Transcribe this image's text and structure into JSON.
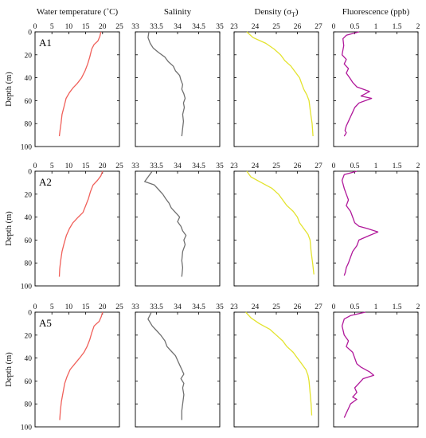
{
  "chart_data": {
    "type": "line",
    "panel_titles": [
      "Water temperature (˚C)",
      "Salinity",
      "Density (σ",
      "Fluorescence (ppb)"
    ],
    "density_title_subscript": "T",
    "density_title_suffix": ")",
    "ylabel": "Depth (m)",
    "ylim": [
      100,
      0
    ],
    "yticks": [
      "0",
      "20",
      "40",
      "60",
      "80",
      "100"
    ],
    "columns": [
      {
        "key": "temp",
        "xlim": [
          0,
          25
        ],
        "xticks": [
          "0",
          "5",
          "10",
          "15",
          "20",
          "25"
        ],
        "color": "#f0605a"
      },
      {
        "key": "sal",
        "xlim": [
          33,
          35
        ],
        "xticks": [
          "33",
          "33.5",
          "34",
          "34.5",
          "35"
        ],
        "color": "#707070"
      },
      {
        "key": "dens",
        "xlim": [
          23,
          27
        ],
        "xticks": [
          "23",
          "24",
          "25",
          "26",
          "27"
        ],
        "color": "#e3e32e"
      },
      {
        "key": "fluor",
        "xlim": [
          0,
          2
        ],
        "xticks": [
          "0",
          "0.5",
          "1",
          "1.5",
          "2"
        ],
        "color": "#b0189a"
      }
    ],
    "stations": [
      {
        "name": "A1",
        "temp": [
          [
            19.5,
            0
          ],
          [
            19.2,
            4
          ],
          [
            18.6,
            8
          ],
          [
            17.5,
            11
          ],
          [
            16.8,
            15
          ],
          [
            16.2,
            22
          ],
          [
            15.6,
            28
          ],
          [
            14.8,
            34
          ],
          [
            13.8,
            40
          ],
          [
            12.5,
            45
          ],
          [
            11.2,
            49
          ],
          [
            10.2,
            53
          ],
          [
            9.2,
            58
          ],
          [
            8.6,
            65
          ],
          [
            8.0,
            72
          ],
          [
            7.7,
            80
          ],
          [
            7.4,
            86
          ],
          [
            7.2,
            91
          ]
        ],
        "sal": [
          [
            33.32,
            0
          ],
          [
            33.3,
            5
          ],
          [
            33.35,
            10
          ],
          [
            33.42,
            14
          ],
          [
            33.55,
            18
          ],
          [
            33.7,
            22
          ],
          [
            33.78,
            26
          ],
          [
            33.9,
            30
          ],
          [
            33.95,
            34
          ],
          [
            34.05,
            38
          ],
          [
            34.08,
            42
          ],
          [
            34.12,
            46
          ],
          [
            34.1,
            50
          ],
          [
            34.15,
            54
          ],
          [
            34.18,
            58
          ],
          [
            34.14,
            62
          ],
          [
            34.16,
            66
          ],
          [
            34.12,
            72
          ],
          [
            34.14,
            78
          ],
          [
            34.12,
            84
          ],
          [
            34.1,
            91
          ]
        ],
        "dens": [
          [
            23.6,
            0
          ],
          [
            23.9,
            5
          ],
          [
            24.5,
            10
          ],
          [
            24.9,
            15
          ],
          [
            25.2,
            20
          ],
          [
            25.4,
            25
          ],
          [
            25.7,
            30
          ],
          [
            25.9,
            35
          ],
          [
            26.1,
            40
          ],
          [
            26.2,
            45
          ],
          [
            26.3,
            50
          ],
          [
            26.45,
            55
          ],
          [
            26.55,
            60
          ],
          [
            26.62,
            70
          ],
          [
            26.7,
            80
          ],
          [
            26.74,
            91
          ]
        ],
        "fluor": [
          [
            0.6,
            0
          ],
          [
            0.3,
            3
          ],
          [
            0.22,
            6
          ],
          [
            0.24,
            12
          ],
          [
            0.2,
            20
          ],
          [
            0.3,
            24
          ],
          [
            0.25,
            28
          ],
          [
            0.35,
            32
          ],
          [
            0.3,
            36
          ],
          [
            0.38,
            40
          ],
          [
            0.45,
            44
          ],
          [
            0.55,
            48
          ],
          [
            0.85,
            52
          ],
          [
            0.65,
            56
          ],
          [
            0.9,
            58
          ],
          [
            0.6,
            62
          ],
          [
            0.5,
            66
          ],
          [
            0.45,
            70
          ],
          [
            0.4,
            74
          ],
          [
            0.35,
            78
          ],
          [
            0.3,
            82
          ],
          [
            0.27,
            86
          ],
          [
            0.3,
            88
          ],
          [
            0.25,
            91
          ]
        ]
      },
      {
        "name": "A2",
        "temp": [
          [
            20,
            0
          ],
          [
            19.5,
            4
          ],
          [
            18.5,
            8
          ],
          [
            17.2,
            12
          ],
          [
            16.4,
            18
          ],
          [
            15.8,
            24
          ],
          [
            15.0,
            30
          ],
          [
            14.2,
            36
          ],
          [
            12.8,
            40
          ],
          [
            11.2,
            45
          ],
          [
            10.2,
            50
          ],
          [
            9.3,
            56
          ],
          [
            8.6,
            63
          ],
          [
            8.0,
            70
          ],
          [
            7.6,
            78
          ],
          [
            7.3,
            85
          ],
          [
            7.2,
            92
          ]
        ],
        "sal": [
          [
            33.4,
            0
          ],
          [
            33.3,
            5
          ],
          [
            33.22,
            9
          ],
          [
            33.45,
            12
          ],
          [
            33.55,
            16
          ],
          [
            33.65,
            20
          ],
          [
            33.72,
            24
          ],
          [
            33.8,
            28
          ],
          [
            33.85,
            32
          ],
          [
            33.95,
            36
          ],
          [
            34.05,
            40
          ],
          [
            34.0,
            44
          ],
          [
            34.08,
            48
          ],
          [
            34.12,
            52
          ],
          [
            34.2,
            56
          ],
          [
            34.15,
            60
          ],
          [
            34.18,
            64
          ],
          [
            34.12,
            70
          ],
          [
            34.1,
            78
          ],
          [
            34.12,
            84
          ],
          [
            34.1,
            92
          ]
        ],
        "dens": [
          [
            23.6,
            0
          ],
          [
            23.8,
            5
          ],
          [
            24.3,
            10
          ],
          [
            24.8,
            15
          ],
          [
            25.1,
            20
          ],
          [
            25.3,
            25
          ],
          [
            25.5,
            30
          ],
          [
            25.8,
            35
          ],
          [
            26.0,
            40
          ],
          [
            26.1,
            45
          ],
          [
            26.3,
            50
          ],
          [
            26.5,
            55
          ],
          [
            26.6,
            60
          ],
          [
            26.65,
            70
          ],
          [
            26.72,
            80
          ],
          [
            26.78,
            90
          ]
        ],
        "fluor": [
          [
            0.55,
            0
          ],
          [
            0.25,
            3
          ],
          [
            0.2,
            8
          ],
          [
            0.25,
            15
          ],
          [
            0.3,
            20
          ],
          [
            0.35,
            25
          ],
          [
            0.3,
            30
          ],
          [
            0.4,
            35
          ],
          [
            0.45,
            40
          ],
          [
            0.5,
            45
          ],
          [
            0.6,
            48
          ],
          [
            0.8,
            50
          ],
          [
            1.05,
            53
          ],
          [
            0.85,
            56
          ],
          [
            0.6,
            60
          ],
          [
            0.55,
            65
          ],
          [
            0.45,
            70
          ],
          [
            0.4,
            75
          ],
          [
            0.35,
            80
          ],
          [
            0.3,
            84
          ],
          [
            0.28,
            88
          ],
          [
            0.25,
            91
          ]
        ]
      },
      {
        "name": "A5",
        "temp": [
          [
            20,
            0
          ],
          [
            19.6,
            4
          ],
          [
            19.0,
            8
          ],
          [
            17.5,
            12
          ],
          [
            16.8,
            18
          ],
          [
            16.2,
            24
          ],
          [
            15.4,
            30
          ],
          [
            14.5,
            35
          ],
          [
            13.2,
            40
          ],
          [
            11.8,
            45
          ],
          [
            10.4,
            50
          ],
          [
            9.5,
            56
          ],
          [
            8.8,
            62
          ],
          [
            8.3,
            70
          ],
          [
            7.8,
            78
          ],
          [
            7.5,
            86
          ],
          [
            7.3,
            94
          ]
        ],
        "sal": [
          [
            33.38,
            0
          ],
          [
            33.3,
            6
          ],
          [
            33.4,
            12
          ],
          [
            33.5,
            16
          ],
          [
            33.6,
            20
          ],
          [
            33.7,
            25
          ],
          [
            33.75,
            30
          ],
          [
            33.85,
            34
          ],
          [
            33.95,
            38
          ],
          [
            34.0,
            42
          ],
          [
            34.05,
            46
          ],
          [
            34.1,
            50
          ],
          [
            34.15,
            54
          ],
          [
            34.08,
            58
          ],
          [
            34.15,
            62
          ],
          [
            34.12,
            66
          ],
          [
            34.15,
            72
          ],
          [
            34.12,
            80
          ],
          [
            34.1,
            86
          ],
          [
            34.1,
            94
          ]
        ],
        "dens": [
          [
            23.55,
            0
          ],
          [
            23.8,
            5
          ],
          [
            24.2,
            10
          ],
          [
            24.7,
            15
          ],
          [
            25.0,
            20
          ],
          [
            25.3,
            25
          ],
          [
            25.5,
            30
          ],
          [
            25.8,
            35
          ],
          [
            26.0,
            40
          ],
          [
            26.2,
            45
          ],
          [
            26.4,
            50
          ],
          [
            26.5,
            55
          ],
          [
            26.55,
            60
          ],
          [
            26.6,
            70
          ],
          [
            26.65,
            80
          ],
          [
            26.68,
            90
          ]
        ],
        "fluor": [
          [
            0.75,
            0
          ],
          [
            0.4,
            3
          ],
          [
            0.25,
            6
          ],
          [
            0.2,
            12
          ],
          [
            0.25,
            20
          ],
          [
            0.35,
            25
          ],
          [
            0.3,
            30
          ],
          [
            0.45,
            35
          ],
          [
            0.5,
            40
          ],
          [
            0.55,
            45
          ],
          [
            0.65,
            48
          ],
          [
            0.85,
            52
          ],
          [
            0.95,
            55
          ],
          [
            0.7,
            58
          ],
          [
            0.6,
            62
          ],
          [
            0.5,
            66
          ],
          [
            0.55,
            70
          ],
          [
            0.45,
            74
          ],
          [
            0.55,
            76
          ],
          [
            0.4,
            80
          ],
          [
            0.35,
            84
          ],
          [
            0.3,
            88
          ],
          [
            0.25,
            92
          ]
        ]
      }
    ]
  }
}
